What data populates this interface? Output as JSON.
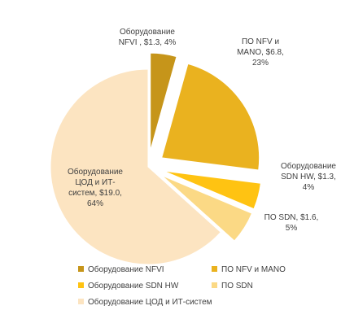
{
  "chart_data": {
    "type": "pie",
    "title": "",
    "legend_position": "bottom",
    "slices": [
      {
        "name": "Оборудование NFVI",
        "value": 1.3,
        "percent": 4,
        "color": "#C6951A",
        "label": "Оборудование\nNFVI , $1.3, 4%",
        "exploded": true
      },
      {
        "name": "ПО NFV и MANO",
        "value": 6.8,
        "percent": 23,
        "color": "#EAB21F",
        "label": "ПО NFV и\nMANO, $6.8,\n23%",
        "exploded": true
      },
      {
        "name": "Оборудование SDN HW",
        "value": 1.3,
        "percent": 4,
        "color": "#FFC312",
        "label": "Оборудование\nSDN HW, $1.3,\n4%",
        "exploded": true
      },
      {
        "name": "ПО SDN",
        "value": 1.6,
        "percent": 5,
        "color": "#FBD985",
        "label": "ПО SDN, $1.6,\n5%",
        "exploded": true
      },
      {
        "name": "Оборудование ЦОД и ИТ-систем",
        "value": 19.0,
        "percent": 64,
        "color": "#FCE4C1",
        "label": "Оборудование\nЦОД и ИТ-\nсистем, $19.0,\n64%",
        "exploded": false
      }
    ]
  }
}
